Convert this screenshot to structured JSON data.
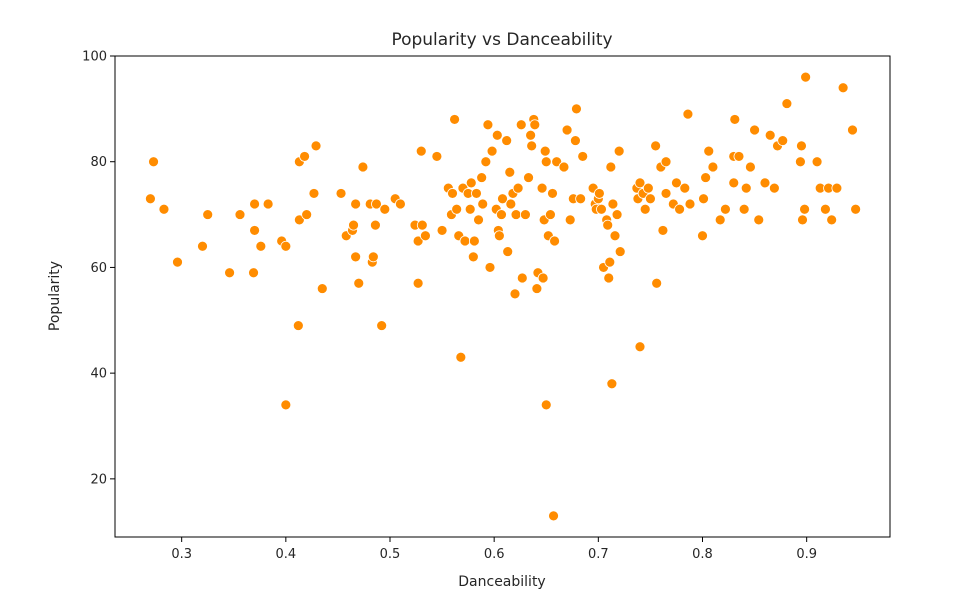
{
  "chart_data": {
    "type": "scatter",
    "title": "Popularity vs Danceability",
    "xlabel": "Danceability",
    "ylabel": "Popularity",
    "xlim": [
      0.236,
      0.98
    ],
    "ylim": [
      9,
      100
    ],
    "x_ticks": [
      0.3,
      0.4,
      0.5,
      0.6,
      0.7,
      0.8,
      0.9
    ],
    "x_tick_labels": [
      "0.3",
      "0.4",
      "0.5",
      "0.6",
      "0.7",
      "0.8",
      "0.9"
    ],
    "y_ticks": [
      20,
      40,
      60,
      80,
      100
    ],
    "y_tick_labels": [
      "20",
      "40",
      "60",
      "80",
      "100"
    ],
    "grid": false,
    "series": [
      {
        "color": "#ff8c00",
        "edgecolor": "#ffffff",
        "points": [
          [
            0.27,
            73
          ],
          [
            0.273,
            80
          ],
          [
            0.283,
            71
          ],
          [
            0.296,
            61
          ],
          [
            0.32,
            64
          ],
          [
            0.325,
            70
          ],
          [
            0.346,
            59
          ],
          [
            0.356,
            70
          ],
          [
            0.369,
            59
          ],
          [
            0.37,
            72
          ],
          [
            0.37,
            67
          ],
          [
            0.376,
            64
          ],
          [
            0.383,
            72
          ],
          [
            0.396,
            65
          ],
          [
            0.4,
            64
          ],
          [
            0.4,
            34
          ],
          [
            0.412,
            49
          ],
          [
            0.413,
            69
          ],
          [
            0.413,
            80
          ],
          [
            0.418,
            81
          ],
          [
            0.42,
            70
          ],
          [
            0.427,
            74
          ],
          [
            0.429,
            83
          ],
          [
            0.435,
            56
          ],
          [
            0.453,
            74
          ],
          [
            0.458,
            66
          ],
          [
            0.464,
            67
          ],
          [
            0.465,
            68
          ],
          [
            0.467,
            72
          ],
          [
            0.467,
            62
          ],
          [
            0.47,
            57
          ],
          [
            0.474,
            79
          ],
          [
            0.481,
            72
          ],
          [
            0.483,
            61
          ],
          [
            0.484,
            62
          ],
          [
            0.486,
            68
          ],
          [
            0.487,
            72
          ],
          [
            0.492,
            49
          ],
          [
            0.495,
            71
          ],
          [
            0.505,
            73
          ],
          [
            0.51,
            72
          ],
          [
            0.524,
            68
          ],
          [
            0.527,
            65
          ],
          [
            0.527,
            57
          ],
          [
            0.53,
            82
          ],
          [
            0.531,
            68
          ],
          [
            0.534,
            66
          ],
          [
            0.545,
            81
          ],
          [
            0.55,
            67
          ],
          [
            0.556,
            75
          ],
          [
            0.559,
            70
          ],
          [
            0.56,
            74
          ],
          [
            0.562,
            88
          ],
          [
            0.564,
            71
          ],
          [
            0.566,
            66
          ],
          [
            0.568,
            43
          ],
          [
            0.57,
            75
          ],
          [
            0.572,
            65
          ],
          [
            0.575,
            74
          ],
          [
            0.577,
            71
          ],
          [
            0.578,
            76
          ],
          [
            0.58,
            62
          ],
          [
            0.581,
            65
          ],
          [
            0.583,
            74
          ],
          [
            0.585,
            69
          ],
          [
            0.588,
            77
          ],
          [
            0.589,
            72
          ],
          [
            0.592,
            80
          ],
          [
            0.594,
            87
          ],
          [
            0.596,
            60
          ],
          [
            0.598,
            82
          ],
          [
            0.602,
            71
          ],
          [
            0.603,
            85
          ],
          [
            0.604,
            67
          ],
          [
            0.605,
            66
          ],
          [
            0.607,
            70
          ],
          [
            0.608,
            73
          ],
          [
            0.612,
            84
          ],
          [
            0.613,
            63
          ],
          [
            0.615,
            78
          ],
          [
            0.616,
            72
          ],
          [
            0.618,
            74
          ],
          [
            0.62,
            55
          ],
          [
            0.621,
            70
          ],
          [
            0.623,
            75
          ],
          [
            0.626,
            87
          ],
          [
            0.627,
            58
          ],
          [
            0.63,
            70
          ],
          [
            0.633,
            77
          ],
          [
            0.635,
            85
          ],
          [
            0.636,
            83
          ],
          [
            0.638,
            88
          ],
          [
            0.639,
            87
          ],
          [
            0.641,
            56
          ],
          [
            0.642,
            59
          ],
          [
            0.646,
            75
          ],
          [
            0.647,
            58
          ],
          [
            0.648,
            69
          ],
          [
            0.649,
            82
          ],
          [
            0.65,
            34
          ],
          [
            0.65,
            80
          ],
          [
            0.652,
            66
          ],
          [
            0.654,
            70
          ],
          [
            0.656,
            74
          ],
          [
            0.657,
            13
          ],
          [
            0.658,
            65
          ],
          [
            0.66,
            80
          ],
          [
            0.667,
            79
          ],
          [
            0.67,
            86
          ],
          [
            0.673,
            69
          ],
          [
            0.676,
            73
          ],
          [
            0.678,
            84
          ],
          [
            0.679,
            90
          ],
          [
            0.683,
            73
          ],
          [
            0.685,
            81
          ],
          [
            0.695,
            75
          ],
          [
            0.697,
            72
          ],
          [
            0.698,
            71
          ],
          [
            0.7,
            73
          ],
          [
            0.701,
            74
          ],
          [
            0.703,
            71
          ],
          [
            0.705,
            60
          ],
          [
            0.708,
            69
          ],
          [
            0.709,
            68
          ],
          [
            0.71,
            58
          ],
          [
            0.711,
            61
          ],
          [
            0.712,
            79
          ],
          [
            0.713,
            38
          ],
          [
            0.714,
            72
          ],
          [
            0.716,
            66
          ],
          [
            0.718,
            70
          ],
          [
            0.72,
            82
          ],
          [
            0.721,
            63
          ],
          [
            0.737,
            75
          ],
          [
            0.738,
            73
          ],
          [
            0.74,
            76
          ],
          [
            0.74,
            45
          ],
          [
            0.743,
            74
          ],
          [
            0.745,
            71
          ],
          [
            0.748,
            75
          ],
          [
            0.75,
            73
          ],
          [
            0.755,
            83
          ],
          [
            0.756,
            57
          ],
          [
            0.76,
            79
          ],
          [
            0.762,
            67
          ],
          [
            0.765,
            80
          ],
          [
            0.765,
            74
          ],
          [
            0.772,
            72
          ],
          [
            0.775,
            76
          ],
          [
            0.778,
            71
          ],
          [
            0.783,
            75
          ],
          [
            0.786,
            89
          ],
          [
            0.788,
            72
          ],
          [
            0.8,
            66
          ],
          [
            0.801,
            73
          ],
          [
            0.803,
            77
          ],
          [
            0.806,
            82
          ],
          [
            0.81,
            79
          ],
          [
            0.817,
            69
          ],
          [
            0.822,
            71
          ],
          [
            0.83,
            76
          ],
          [
            0.83,
            81
          ],
          [
            0.831,
            88
          ],
          [
            0.835,
            81
          ],
          [
            0.84,
            71
          ],
          [
            0.842,
            75
          ],
          [
            0.846,
            79
          ],
          [
            0.85,
            86
          ],
          [
            0.854,
            69
          ],
          [
            0.86,
            76
          ],
          [
            0.865,
            85
          ],
          [
            0.869,
            75
          ],
          [
            0.872,
            83
          ],
          [
            0.877,
            84
          ],
          [
            0.881,
            91
          ],
          [
            0.894,
            80
          ],
          [
            0.895,
            83
          ],
          [
            0.896,
            69
          ],
          [
            0.898,
            71
          ],
          [
            0.899,
            96
          ],
          [
            0.91,
            80
          ],
          [
            0.913,
            75
          ],
          [
            0.918,
            71
          ],
          [
            0.921,
            75
          ],
          [
            0.924,
            69
          ],
          [
            0.929,
            75
          ],
          [
            0.935,
            94
          ],
          [
            0.944,
            86
          ],
          [
            0.947,
            71
          ]
        ]
      }
    ]
  }
}
